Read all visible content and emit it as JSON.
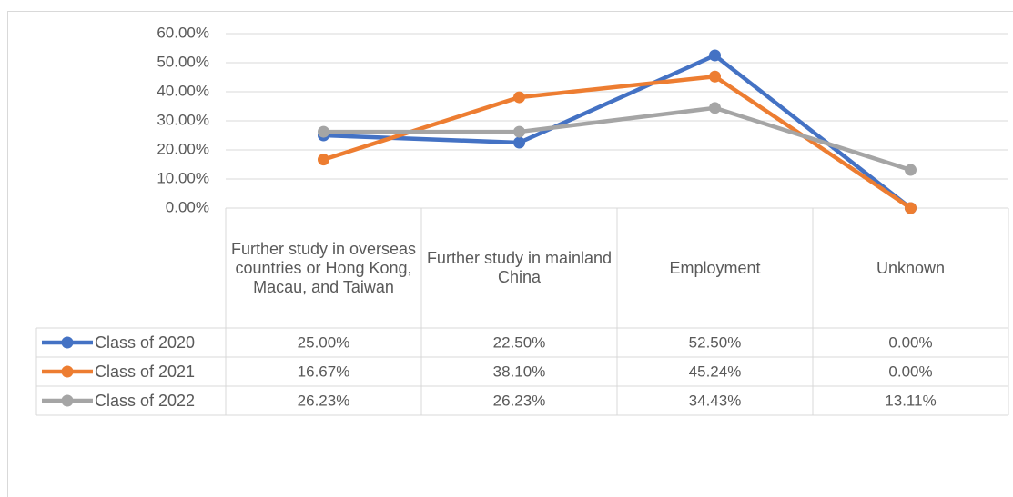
{
  "chart_data": {
    "type": "line",
    "categories": [
      "Further study in overseas countries or Hong Kong, Macau, and Taiwan",
      "Further study in mainland China",
      "Employment",
      "Unknown"
    ],
    "series": [
      {
        "name": "Class of 2020",
        "color": "#4472c4",
        "values": [
          25.0,
          22.5,
          52.5,
          0.0
        ],
        "value_labels": [
          "25.00%",
          "22.50%",
          "52.50%",
          "0.00%"
        ]
      },
      {
        "name": "Class of 2021",
        "color": "#ed7d31",
        "values": [
          16.67,
          38.1,
          45.24,
          0.0
        ],
        "value_labels": [
          "16.67%",
          "38.10%",
          "45.24%",
          "0.00%"
        ]
      },
      {
        "name": "Class of 2022",
        "color": "#a5a5a5",
        "values": [
          26.23,
          26.23,
          34.43,
          13.11
        ],
        "value_labels": [
          "26.23%",
          "26.23%",
          "34.43%",
          "13.11%"
        ]
      }
    ],
    "ylim": [
      0,
      60
    ],
    "yticks": [
      {
        "value": 0,
        "label": "0.00%"
      },
      {
        "value": 10,
        "label": "10.00%"
      },
      {
        "value": 20,
        "label": "20.00%"
      },
      {
        "value": 30,
        "label": "30.00%"
      },
      {
        "value": 40,
        "label": "40.00%"
      },
      {
        "value": 50,
        "label": "50.00%"
      },
      {
        "value": 60,
        "label": "60.00%"
      }
    ],
    "grid": true
  }
}
